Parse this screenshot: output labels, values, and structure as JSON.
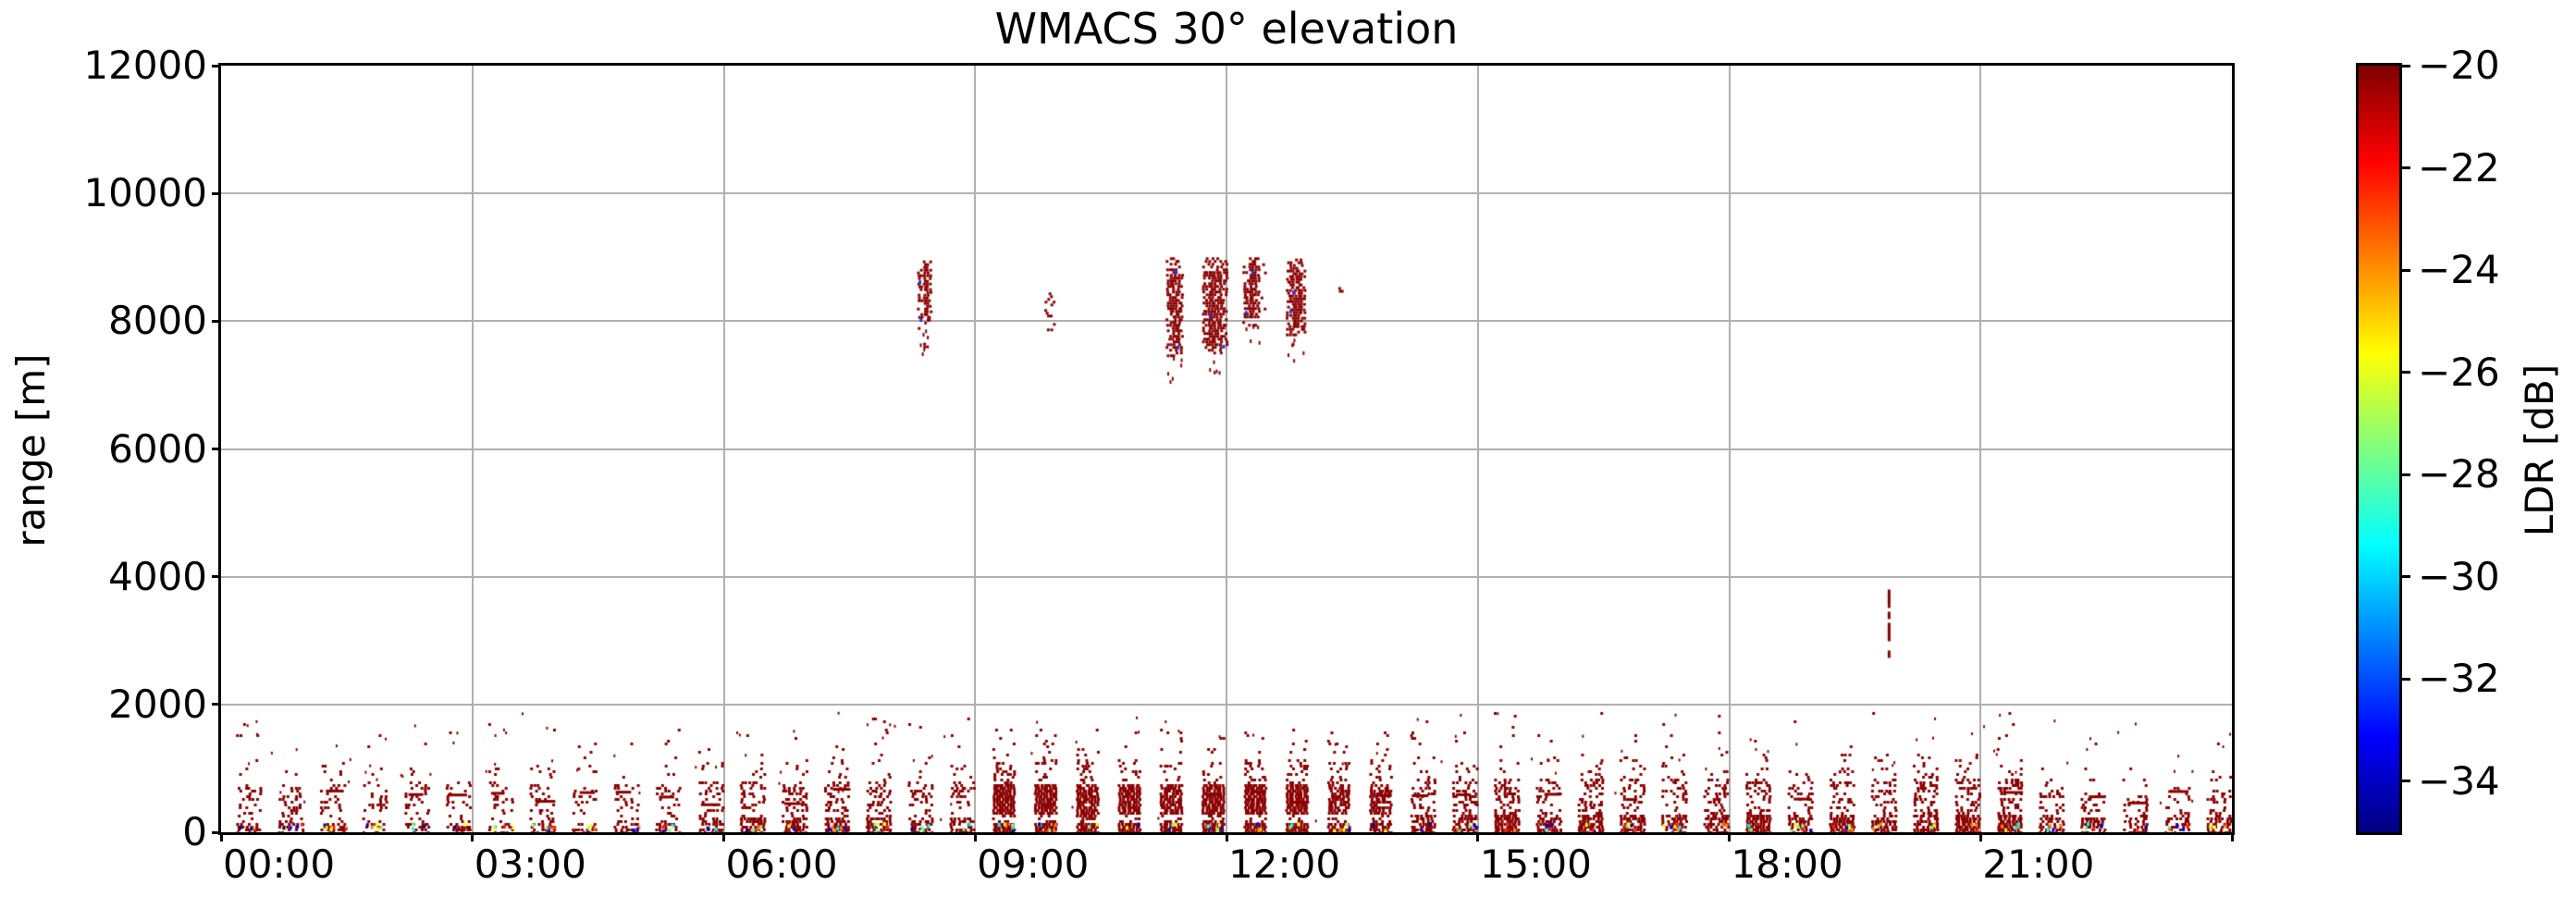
{
  "chart_data": {
    "type": "scatter",
    "title": "WMACS 30° elevation",
    "xlabel": "",
    "ylabel": "range [m]",
    "x_axis": {
      "start_hour": 0,
      "end_hour": 24,
      "tick_interval_hours": 3,
      "tick_labels": [
        "00:00",
        "03:00",
        "06:00",
        "09:00",
        "12:00",
        "15:00",
        "18:00",
        "21:00"
      ],
      "labels_left_aligned_on_ticks": true,
      "unlabeled_edge_tick_hour": 24
    },
    "y_axis": {
      "ylim": [
        0,
        12000
      ],
      "tick_labels": [
        "0",
        "2000",
        "4000",
        "6000",
        "8000",
        "10000",
        "12000"
      ],
      "tick_values": [
        0,
        2000,
        4000,
        6000,
        8000,
        10000,
        12000
      ]
    },
    "grid": true,
    "grid_color": "#b0b0b0",
    "colorbar": {
      "label": "LDR [dB]",
      "vmin": -35,
      "vmax": -20,
      "tick_values": [
        -20,
        -22,
        -24,
        -26,
        -28,
        -30,
        -32,
        -34
      ],
      "tick_labels": [
        "−20",
        "−22",
        "−24",
        "−26",
        "−28",
        "−30",
        "−32",
        "−34"
      ],
      "colormap": "jet",
      "colormap_stops_bottom_to_top": [
        "#00007f",
        "#0000ff",
        "#007fff",
        "#00ffff",
        "#7fff7f",
        "#ffff00",
        "#ff7f00",
        "#ff0000",
        "#7f0000"
      ]
    },
    "dominant_point_color": "#8b0000",
    "dominant_value_db": -20,
    "speck_palette": [
      "#0000ee",
      "#00ffff",
      "#ff7f00",
      "#ffff00",
      "#7fff7f",
      "#ff2200",
      "#000099"
    ],
    "features": {
      "boundary_layer_clusters": {
        "description": "Dense dark-red echo bursts near the surface repeating every 30 minutes all day",
        "first_center": "00:20",
        "interval_minutes": 30,
        "count": 48,
        "core_range_m": [
          0,
          300
        ],
        "typical_top_m": 800,
        "speckle_top_m": 1900,
        "density_schedule": [
          {
            "from_hour": 0,
            "to_hour": 5.75,
            "level": "sparse"
          },
          {
            "from_hour": 5.75,
            "to_hour": 9,
            "level": "medium"
          },
          {
            "from_hour": 9,
            "to_hour": 14,
            "level": "dense"
          },
          {
            "from_hour": 14,
            "to_hour": 21.5,
            "level": "medium2"
          },
          {
            "from_hour": 21.5,
            "to_hour": 24,
            "level": "sparse2"
          }
        ]
      },
      "elevated_streaks": [
        {
          "start": "08:19",
          "end": "08:28",
          "range_m": [
            7900,
            8950
          ],
          "density": "dense"
        },
        {
          "start": "08:23",
          "end": "08:26",
          "range_m": [
            7550,
            7750
          ],
          "density": "sparse"
        },
        {
          "start": "09:50",
          "end": "09:56",
          "range_m": [
            7800,
            8450
          ],
          "density": "sparse"
        },
        {
          "start": "11:17",
          "end": "11:28",
          "range_m": [
            7450,
            9000
          ],
          "density": "dense"
        },
        {
          "start": "11:43",
          "end": "11:59",
          "range_m": [
            7500,
            9000
          ],
          "density": "dense"
        },
        {
          "start": "12:12",
          "end": "12:23",
          "range_m": [
            7950,
            9000
          ],
          "density": "dense"
        },
        {
          "start": "12:25",
          "end": "12:28",
          "range_m": [
            7900,
            8950
          ],
          "density": "sparse"
        },
        {
          "start": "12:43",
          "end": "12:56",
          "range_m": [
            7800,
            8980
          ],
          "density": "dense"
        },
        {
          "start": "13:20",
          "end": "13:22",
          "range_m": [
            8440,
            8620
          ],
          "density": "sparse"
        },
        {
          "start": "19:51",
          "end": "19:56",
          "range_m": [
            2820,
            3800
          ],
          "density": "dashed"
        }
      ]
    }
  }
}
